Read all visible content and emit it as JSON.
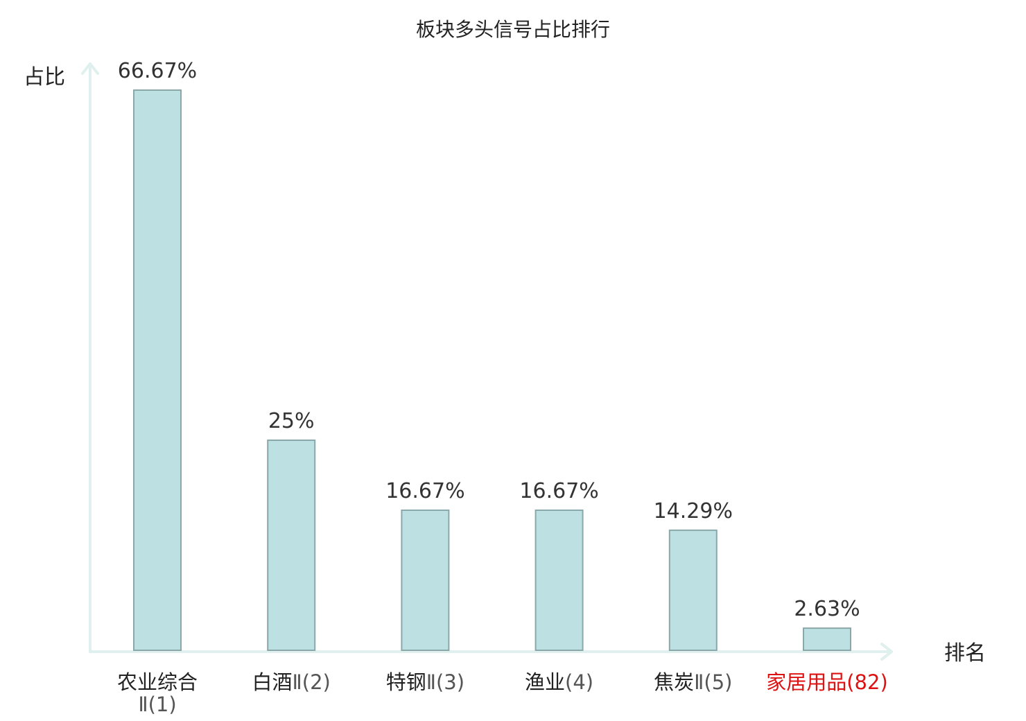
{
  "chart_data": {
    "type": "bar",
    "title": "板块多头信号占比排行",
    "ylabel": "占比",
    "xlabel": "排名",
    "ylim": [
      0,
      70
    ],
    "grid": false,
    "categories": [
      {
        "name": "农业综合",
        "suffix": "Ⅱ(1)",
        "highlight": false
      },
      {
        "name": "白酒",
        "suffix": "Ⅱ(2)",
        "highlight": false
      },
      {
        "name": "特钢",
        "suffix": "Ⅱ(3)",
        "highlight": false
      },
      {
        "name": "渔业",
        "suffix": "(4)",
        "highlight": false
      },
      {
        "name": "焦炭",
        "suffix": "Ⅱ(5)",
        "highlight": false
      },
      {
        "name": "家居用品",
        "suffix": "(82)",
        "highlight": true
      }
    ],
    "values": [
      66.67,
      25,
      16.67,
      16.67,
      14.29,
      2.63
    ],
    "value_labels": [
      "66.67%",
      "25%",
      "16.67%",
      "16.67%",
      "14.29%",
      "2.63%"
    ],
    "colors": {
      "bar_fill": "#bde0e3",
      "bar_stroke": "#8aa8aa",
      "axis": "#dff0ee",
      "highlight_text": "#dd1111",
      "text": "#222222"
    }
  }
}
